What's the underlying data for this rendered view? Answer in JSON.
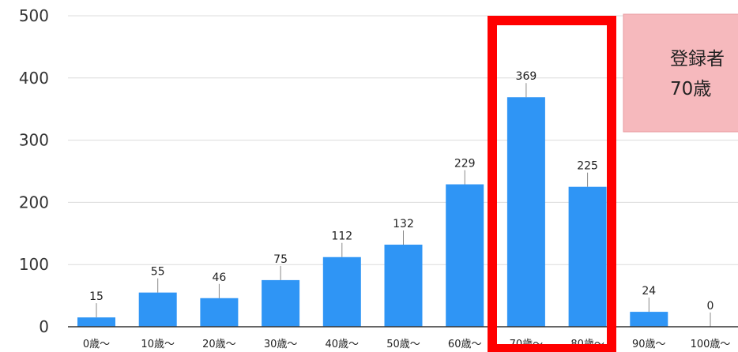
{
  "chart_data": {
    "type": "bar",
    "categories": [
      "0歳〜",
      "10歳〜",
      "20歳〜",
      "30歳〜",
      "40歳〜",
      "50歳〜",
      "60歳〜",
      "70歳〜",
      "80歳〜",
      "90歳〜",
      "100歳〜"
    ],
    "values": [
      15,
      55,
      46,
      75,
      112,
      132,
      229,
      369,
      225,
      24,
      0
    ],
    "ylim": [
      0,
      500
    ],
    "yticks": [
      0,
      100,
      200,
      300,
      400,
      500
    ],
    "grid": true,
    "bar_color": "#2f95f5",
    "highlight": {
      "categories": [
        "70歳〜",
        "80歳〜"
      ],
      "color": "#ff0000"
    },
    "callout": {
      "lines": [
        "登録者",
        "70歳"
      ],
      "fill": "#f6b9bd"
    }
  }
}
